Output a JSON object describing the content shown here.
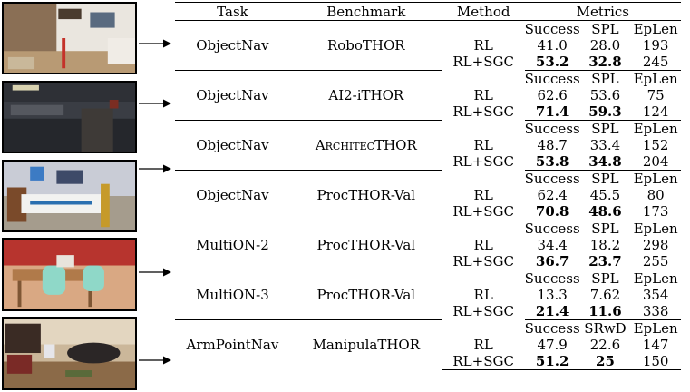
{
  "header": {
    "task": "Task",
    "benchmark": "Benchmark",
    "method": "Method",
    "metrics": "Metrics"
  },
  "rows": [
    {
      "task": "ObjectNav",
      "benchmark": "RoboTHOR",
      "metric_names": [
        "Success",
        "SPL",
        "EpLen"
      ],
      "rl": {
        "method": "RL",
        "values": [
          "41.0",
          "28.0",
          "193"
        ]
      },
      "sgc": {
        "method": "RL+SGC",
        "values": [
          "53.2",
          "32.8",
          "245"
        ]
      }
    },
    {
      "task": "ObjectNav",
      "benchmark": "AI2-iTHOR",
      "metric_names": [
        "Success",
        "SPL",
        "EpLen"
      ],
      "rl": {
        "method": "RL",
        "values": [
          "62.6",
          "53.6",
          "75"
        ]
      },
      "sgc": {
        "method": "RL+SGC",
        "values": [
          "71.4",
          "59.3",
          "124"
        ]
      }
    },
    {
      "task": "ObjectNav",
      "benchmark_a": "Architec",
      "benchmark_b": "THOR",
      "metric_names": [
        "Success",
        "SPL",
        "EpLen"
      ],
      "rl": {
        "method": "RL",
        "values": [
          "48.7",
          "33.4",
          "152"
        ]
      },
      "sgc": {
        "method": "RL+SGC",
        "values": [
          "53.8",
          "34.8",
          "204"
        ]
      }
    },
    {
      "task": "ObjectNav",
      "benchmark": "ProcTHOR-Val",
      "metric_names": [
        "Success",
        "SPL",
        "EpLen"
      ],
      "rl": {
        "method": "RL",
        "values": [
          "62.4",
          "45.5",
          "80"
        ]
      },
      "sgc": {
        "method": "RL+SGC",
        "values": [
          "70.8",
          "48.6",
          "173"
        ]
      }
    },
    {
      "task": "MultiON-2",
      "benchmark": "ProcTHOR-Val",
      "metric_names": [
        "Success",
        "SPL",
        "EpLen"
      ],
      "rl": {
        "method": "RL",
        "values": [
          "34.4",
          "18.2",
          "298"
        ]
      },
      "sgc": {
        "method": "RL+SGC",
        "values": [
          "36.7",
          "23.7",
          "255"
        ]
      }
    },
    {
      "task": "MultiON-3",
      "benchmark": "ProcTHOR-Val",
      "metric_names": [
        "Success",
        "SPL",
        "EpLen"
      ],
      "rl": {
        "method": "RL",
        "values": [
          "13.3",
          "7.62",
          "354"
        ]
      },
      "sgc": {
        "method": "RL+SGC",
        "values": [
          "21.4",
          "11.6",
          "338"
        ]
      }
    },
    {
      "task": "ArmPointNav",
      "benchmark": "ManipulaTHOR",
      "metric_names": [
        "Success",
        "SRwD",
        "EpLen"
      ],
      "rl": {
        "method": "RL",
        "values": [
          "47.9",
          "22.6",
          "147"
        ]
      },
      "sgc": {
        "method": "RL+SGC",
        "values": [
          "51.2",
          "25",
          "150"
        ]
      }
    }
  ],
  "colors": {
    "rule": "#000000",
    "text": "#000000"
  }
}
